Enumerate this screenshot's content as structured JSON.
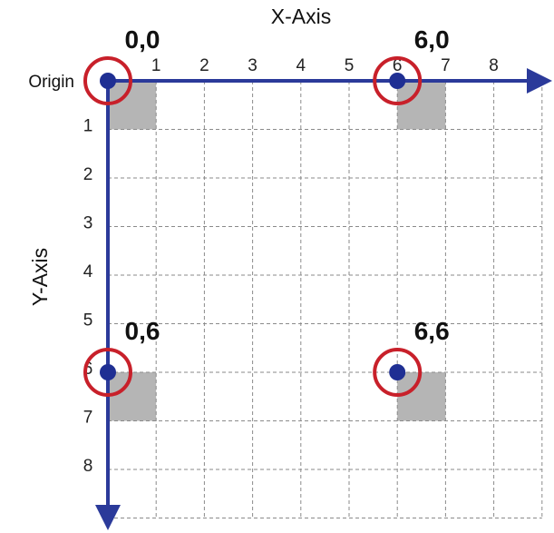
{
  "title": "",
  "x_axis": {
    "label": "X-Axis",
    "ticks": [
      "1",
      "2",
      "3",
      "4",
      "5",
      "6",
      "7",
      "8"
    ]
  },
  "y_axis": {
    "label": "Y-Axis",
    "ticks": [
      "1",
      "2",
      "3",
      "4",
      "5",
      "6",
      "7",
      "8"
    ]
  },
  "origin_label": "Origin",
  "grid": {
    "dashed": true,
    "columns": 9,
    "rows": 9
  },
  "points": [
    {
      "x": 0,
      "y": 0,
      "label": "0,0"
    },
    {
      "x": 6,
      "y": 0,
      "label": "6,0"
    },
    {
      "x": 0,
      "y": 6,
      "label": "0,6"
    },
    {
      "x": 6,
      "y": 6,
      "label": "6,6"
    }
  ],
  "colors": {
    "axis": "#2b3a9a",
    "point": "#1f2f93",
    "ring": "#c8202a",
    "cell": "#b5b5b5",
    "grid": "#8a8a8a"
  }
}
